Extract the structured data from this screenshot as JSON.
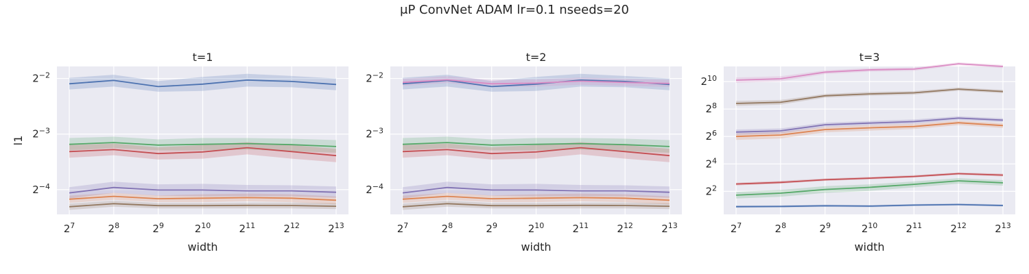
{
  "figure": {
    "suptitle": "μP ConvNet ADAM lr=0.1 nseeds=20"
  },
  "colors": {
    "background": "#eaeaf2",
    "grid": "#ffffff",
    "series": [
      "#4c72b0",
      "#dd8452",
      "#55a868",
      "#c44e52",
      "#8172b3",
      "#937860",
      "#da8bc3"
    ]
  },
  "chart_data": [
    {
      "type": "line",
      "title": "t=1",
      "xlabel": "width",
      "ylabel": "l1",
      "x_scale": "log2",
      "y_scale": "log2",
      "x": [
        128,
        256,
        512,
        1024,
        2048,
        4096,
        8192
      ],
      "x_tick_labels": [
        {
          "base": "2",
          "exp": "7"
        },
        {
          "base": "2",
          "exp": "8"
        },
        {
          "base": "2",
          "exp": "9"
        },
        {
          "base": "2",
          "exp": "10"
        },
        {
          "base": "2",
          "exp": "11"
        },
        {
          "base": "2",
          "exp": "12"
        },
        {
          "base": "2",
          "exp": "13"
        }
      ],
      "y_ticks": [
        {
          "value": 0.25,
          "base": "2",
          "exp": "−2"
        },
        {
          "value": 0.125,
          "base": "2",
          "exp": "−3"
        },
        {
          "value": 0.0625,
          "base": "2",
          "exp": "−4"
        }
      ],
      "ylim": [
        0.0459,
        0.2905
      ],
      "grid": true,
      "series": [
        {
          "color": "#4c72b0",
          "values": [
            0.234,
            0.244,
            0.226,
            0.233,
            0.245,
            0.241,
            0.232
          ],
          "lower": [
            0.218,
            0.226,
            0.212,
            0.214,
            0.226,
            0.224,
            0.216
          ],
          "upper": [
            0.252,
            0.262,
            0.242,
            0.255,
            0.265,
            0.258,
            0.25
          ]
        },
        {
          "color": "#dd8452",
          "values": [
            0.0555,
            0.0575,
            0.0558,
            0.0562,
            0.0566,
            0.0562,
            0.0548
          ],
          "lower": [
            0.053,
            0.055,
            0.0535,
            0.0535,
            0.054,
            0.0535,
            0.052
          ],
          "upper": [
            0.058,
            0.06,
            0.0582,
            0.059,
            0.0595,
            0.059,
            0.0575
          ]
        },
        {
          "color": "#55a868",
          "values": [
            0.11,
            0.1125,
            0.109,
            0.11,
            0.111,
            0.1095,
            0.107
          ],
          "lower": [
            0.102,
            0.105,
            0.102,
            0.102,
            0.103,
            0.101,
            0.099
          ],
          "upper": [
            0.119,
            0.121,
            0.117,
            0.119,
            0.119,
            0.118,
            0.116
          ]
        },
        {
          "color": "#c44e52",
          "values": [
            0.1005,
            0.103,
            0.098,
            0.1,
            0.1055,
            0.1005,
            0.0955
          ],
          "lower": [
            0.093,
            0.096,
            0.091,
            0.092,
            0.097,
            0.092,
            0.088
          ],
          "upper": [
            0.109,
            0.111,
            0.106,
            0.109,
            0.113,
            0.109,
            0.104
          ]
        },
        {
          "color": "#8172b3",
          "values": [
            0.06,
            0.0642,
            0.0622,
            0.0622,
            0.0616,
            0.0616,
            0.0605
          ],
          "lower": [
            0.056,
            0.06,
            0.058,
            0.0575,
            0.0575,
            0.0575,
            0.0565
          ],
          "upper": [
            0.0645,
            0.069,
            0.0668,
            0.0672,
            0.0663,
            0.066,
            0.065
          ]
        },
        {
          "color": "#937860",
          "values": [
            0.0505,
            0.0525,
            0.0512,
            0.0512,
            0.0514,
            0.0513,
            0.0508
          ],
          "lower": [
            0.0485,
            0.0505,
            0.0495,
            0.0495,
            0.0495,
            0.0495,
            0.049
          ],
          "upper": [
            0.0525,
            0.0545,
            0.053,
            0.053,
            0.0532,
            0.0532,
            0.0528
          ]
        }
      ]
    },
    {
      "type": "line",
      "title": "t=2",
      "xlabel": "width",
      "ylabel": "",
      "x_scale": "log2",
      "y_scale": "log2",
      "x": [
        128,
        256,
        512,
        1024,
        2048,
        4096,
        8192
      ],
      "x_tick_labels": [
        {
          "base": "2",
          "exp": "7"
        },
        {
          "base": "2",
          "exp": "8"
        },
        {
          "base": "2",
          "exp": "9"
        },
        {
          "base": "2",
          "exp": "10"
        },
        {
          "base": "2",
          "exp": "11"
        },
        {
          "base": "2",
          "exp": "12"
        },
        {
          "base": "2",
          "exp": "13"
        }
      ],
      "y_ticks": [
        {
          "value": 0.25,
          "base": "2",
          "exp": "−2"
        },
        {
          "value": 0.125,
          "base": "2",
          "exp": "−3"
        },
        {
          "value": 0.0625,
          "base": "2",
          "exp": "−4"
        }
      ],
      "ylim": [
        0.0459,
        0.2905
      ],
      "grid": true,
      "series": [
        {
          "color": "#4c72b0",
          "values": [
            0.234,
            0.244,
            0.226,
            0.233,
            0.245,
            0.241,
            0.232
          ],
          "lower": [
            0.218,
            0.226,
            0.212,
            0.214,
            0.226,
            0.224,
            0.216
          ],
          "upper": [
            0.252,
            0.262,
            0.242,
            0.255,
            0.265,
            0.258,
            0.25
          ]
        },
        {
          "color": "#dd8452",
          "values": [
            0.0555,
            0.0575,
            0.0558,
            0.0562,
            0.0566,
            0.0562,
            0.0548
          ],
          "lower": [
            0.053,
            0.055,
            0.0535,
            0.0535,
            0.054,
            0.0535,
            0.052
          ],
          "upper": [
            0.058,
            0.06,
            0.0582,
            0.059,
            0.0595,
            0.059,
            0.0575
          ]
        },
        {
          "color": "#55a868",
          "values": [
            0.11,
            0.1125,
            0.109,
            0.11,
            0.111,
            0.1095,
            0.107
          ],
          "lower": [
            0.102,
            0.105,
            0.102,
            0.102,
            0.103,
            0.101,
            0.099
          ],
          "upper": [
            0.119,
            0.121,
            0.117,
            0.119,
            0.119,
            0.118,
            0.116
          ]
        },
        {
          "color": "#c44e52",
          "values": [
            0.1005,
            0.103,
            0.098,
            0.1,
            0.1055,
            0.1005,
            0.0955
          ],
          "lower": [
            0.093,
            0.096,
            0.091,
            0.092,
            0.097,
            0.092,
            0.088
          ],
          "upper": [
            0.109,
            0.111,
            0.106,
            0.109,
            0.113,
            0.109,
            0.104
          ]
        },
        {
          "color": "#8172b3",
          "values": [
            0.06,
            0.0642,
            0.0622,
            0.0622,
            0.0616,
            0.0616,
            0.0605
          ],
          "lower": [
            0.056,
            0.06,
            0.058,
            0.0575,
            0.0575,
            0.0575,
            0.0565
          ],
          "upper": [
            0.0645,
            0.069,
            0.0668,
            0.0672,
            0.0663,
            0.066,
            0.065
          ]
        },
        {
          "color": "#937860",
          "values": [
            0.0505,
            0.0525,
            0.0512,
            0.0512,
            0.0514,
            0.0513,
            0.0508
          ],
          "lower": [
            0.0485,
            0.0505,
            0.0495,
            0.0495,
            0.0495,
            0.0495,
            0.049
          ],
          "upper": [
            0.0525,
            0.0545,
            0.053,
            0.053,
            0.0532,
            0.0532,
            0.0528
          ]
        },
        {
          "color": "#da8bc3",
          "values": [
            0.238,
            0.246,
            0.234,
            0.236,
            0.242,
            0.238,
            0.235
          ],
          "lower": [
            0.228,
            0.236,
            0.224,
            0.226,
            0.231,
            0.228,
            0.225
          ],
          "upper": [
            0.249,
            0.257,
            0.245,
            0.247,
            0.253,
            0.249,
            0.246
          ]
        }
      ]
    },
    {
      "type": "line",
      "title": "t=3",
      "xlabel": "width",
      "ylabel": "",
      "x_scale": "log2",
      "y_scale": "log2",
      "x": [
        128,
        256,
        512,
        1024,
        2048,
        4096,
        8192
      ],
      "x_tick_labels": [
        {
          "base": "2",
          "exp": "7"
        },
        {
          "base": "2",
          "exp": "8"
        },
        {
          "base": "2",
          "exp": "9"
        },
        {
          "base": "2",
          "exp": "10"
        },
        {
          "base": "2",
          "exp": "11"
        },
        {
          "base": "2",
          "exp": "12"
        },
        {
          "base": "2",
          "exp": "13"
        }
      ],
      "y_ticks": [
        {
          "value": 1024,
          "base": "2",
          "exp": "10"
        },
        {
          "value": 256,
          "base": "2",
          "exp": "8"
        },
        {
          "value": 64,
          "base": "2",
          "exp": "6"
        },
        {
          "value": 16,
          "base": "2",
          "exp": "4"
        },
        {
          "value": 4,
          "base": "2",
          "exp": "2"
        }
      ],
      "ylim": [
        1.25,
        2200
      ],
      "grid": true,
      "series": [
        {
          "color": "#4c72b0",
          "values": [
            1.85,
            1.87,
            1.93,
            1.9,
            2.0,
            2.06,
            1.96
          ],
          "lower": [
            1.75,
            1.77,
            1.83,
            1.8,
            1.9,
            1.96,
            1.86
          ],
          "upper": [
            1.96,
            1.98,
            2.04,
            2.01,
            2.11,
            2.18,
            2.07
          ]
        },
        {
          "color": "#dd8452",
          "values": [
            64,
            69,
            91,
            99,
            106,
            128,
            111
          ],
          "lower": [
            54,
            58,
            79,
            86,
            93,
            114,
            98
          ],
          "upper": [
            75,
            80,
            104,
            113,
            121,
            143,
            125
          ]
        },
        {
          "color": "#55a868",
          "values": [
            3.3,
            3.65,
            4.4,
            4.9,
            5.7,
            6.8,
            6.15
          ],
          "lower": [
            2.8,
            3.05,
            3.7,
            4.1,
            4.9,
            5.9,
            5.35
          ],
          "upper": [
            3.9,
            4.3,
            5.2,
            5.7,
            6.6,
            7.8,
            7.05
          ]
        },
        {
          "color": "#c44e52",
          "values": [
            5.8,
            6.3,
            7.2,
            7.8,
            8.5,
            9.8,
            9.1
          ],
          "lower": [
            5.4,
            5.9,
            6.8,
            7.3,
            8.0,
            9.2,
            8.5
          ],
          "upper": [
            6.2,
            6.8,
            7.7,
            8.3,
            9.1,
            10.4,
            9.8
          ]
        },
        {
          "color": "#8172b3",
          "values": [
            80,
            85,
            116,
            126,
            136,
            162,
            146
          ],
          "lower": [
            70,
            75,
            104,
            113,
            122,
            147,
            132
          ],
          "upper": [
            91,
            96,
            129,
            140,
            151,
            178,
            161
          ]
        },
        {
          "color": "#937860",
          "values": [
            340,
            360,
            500,
            550,
            580,
            700,
            620
          ],
          "lower": [
            300,
            320,
            455,
            500,
            530,
            645,
            570
          ],
          "upper": [
            385,
            405,
            550,
            605,
            635,
            760,
            675
          ]
        },
        {
          "color": "#da8bc3",
          "values": [
            1100,
            1180,
            1650,
            1850,
            1920,
            2520,
            2200
          ],
          "lower": [
            960,
            1040,
            1500,
            1690,
            1760,
            2330,
            2020
          ],
          "upper": [
            1260,
            1340,
            1810,
            2020,
            2090,
            2720,
            2390
          ]
        }
      ]
    }
  ]
}
